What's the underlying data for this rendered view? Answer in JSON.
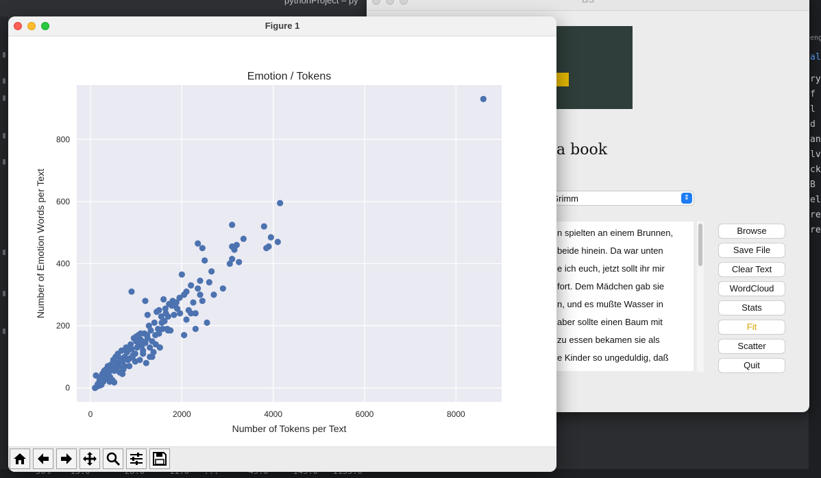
{
  "ide": {
    "title": "pythonProject – py",
    "bottom_row": "50%    13.0       28.0     11.0   ...      49.0     149.0   1155.0",
    "code_fragments": [
      "eng",
      "al",
      "ry",
      "f",
      "l",
      "d",
      "an",
      "lv",
      "ck",
      "B",
      "el",
      "re",
      "re"
    ]
  },
  "bs_window": {
    "title": "BS",
    "heading": "e a book",
    "select_value": "Grimm",
    "text_lines": [
      "n spielten an einem Brunnen,",
      "beide hinein. Da war unten",
      "e ich euch, jetzt sollt ihr mir",
      "fort. Dem Mädchen gab sie",
      "n, und es mußte Wasser in",
      " aber sollte einen Baum mit",
      "zu essen bekamen sie als",
      "e Kinder so ungeduldig, daß"
    ],
    "buttons": [
      {
        "name": "browse-button",
        "label": "Browse"
      },
      {
        "name": "save-file-button",
        "label": "Save File"
      },
      {
        "name": "clear-text-button",
        "label": "Clear Text"
      },
      {
        "name": "wordcloud-button",
        "label": "WordCloud"
      },
      {
        "name": "stats-button",
        "label": "Stats"
      },
      {
        "name": "fit-button",
        "label": "Fit"
      },
      {
        "name": "scatter-button",
        "label": "Scatter"
      },
      {
        "name": "quit-button",
        "label": "Quit"
      }
    ],
    "accent_color": "#d7a400"
  },
  "figure_window": {
    "title": "Figure 1",
    "toolbar": [
      "home-icon",
      "back-arrow-icon",
      "forward-arrow-icon",
      "pan-icon",
      "zoom-icon",
      "subplots-config-icon",
      "save-icon"
    ]
  },
  "chart_data": {
    "type": "scatter",
    "title": "Emotion / Tokens",
    "xlabel": "Number of Tokens per Text",
    "ylabel": "Number of Emotion Words per Text",
    "xlim": [
      -300,
      9000
    ],
    "ylim": [
      -45,
      975
    ],
    "xticks": [
      0,
      2000,
      4000,
      6000,
      8000
    ],
    "yticks": [
      0,
      200,
      400,
      600,
      800
    ],
    "grid": true,
    "background": "#eaeaf2",
    "marker_color": "#4c72b0",
    "points": [
      [
        150,
        5
      ],
      [
        180,
        15
      ],
      [
        200,
        25
      ],
      [
        220,
        35
      ],
      [
        240,
        10
      ],
      [
        260,
        45
      ],
      [
        280,
        20
      ],
      [
        300,
        55
      ],
      [
        320,
        30
      ],
      [
        340,
        60
      ],
      [
        360,
        40
      ],
      [
        380,
        70
      ],
      [
        400,
        50
      ],
      [
        420,
        20
      ],
      [
        450,
        75
      ],
      [
        470,
        60
      ],
      [
        500,
        90
      ],
      [
        520,
        55
      ],
      [
        550,
        100
      ],
      [
        580,
        80
      ],
      [
        600,
        110
      ],
      [
        620,
        70
      ],
      [
        650,
        95
      ],
      [
        680,
        120
      ],
      [
        700,
        85
      ],
      [
        720,
        60
      ],
      [
        750,
        100
      ],
      [
        780,
        130
      ],
      [
        800,
        115
      ],
      [
        820,
        90
      ],
      [
        850,
        70
      ],
      [
        880,
        140
      ],
      [
        900,
        125
      ],
      [
        920,
        100
      ],
      [
        950,
        160
      ],
      [
        980,
        110
      ],
      [
        1000,
        150
      ],
      [
        1020,
        130
      ],
      [
        1050,
        170
      ],
      [
        1080,
        90
      ],
      [
        1100,
        155
      ],
      [
        1120,
        135
      ],
      [
        1150,
        120
      ],
      [
        1180,
        175
      ],
      [
        1200,
        145
      ],
      [
        1220,
        80
      ],
      [
        1250,
        160
      ],
      [
        1280,
        200
      ],
      [
        1300,
        130
      ],
      [
        1320,
        185
      ],
      [
        1350,
        150
      ],
      [
        1380,
        115
      ],
      [
        1400,
        210
      ],
      [
        1420,
        170
      ],
      [
        1450,
        245
      ],
      [
        1480,
        190
      ],
      [
        1500,
        250
      ],
      [
        1520,
        130
      ],
      [
        1550,
        230
      ],
      [
        1580,
        190
      ],
      [
        1600,
        285
      ],
      [
        1620,
        215
      ],
      [
        1650,
        240
      ],
      [
        1680,
        190
      ],
      [
        1700,
        230
      ],
      [
        1750,
        185
      ],
      [
        1800,
        280
      ],
      [
        1850,
        265
      ],
      [
        1900,
        255
      ],
      [
        1950,
        290
      ],
      [
        2000,
        365
      ],
      [
        2050,
        300
      ],
      [
        2100,
        310
      ],
      [
        2150,
        250
      ],
      [
        2200,
        330
      ],
      [
        2250,
        275
      ],
      [
        2300,
        240
      ],
      [
        2350,
        320
      ],
      [
        2400,
        345
      ],
      [
        2450,
        280
      ],
      [
        2500,
        410
      ],
      [
        2550,
        210
      ],
      [
        2600,
        340
      ],
      [
        2650,
        375
      ],
      [
        2700,
        300
      ],
      [
        2050,
        170
      ],
      [
        2200,
        240
      ],
      [
        2300,
        190
      ],
      [
        2400,
        300
      ],
      [
        2450,
        450
      ],
      [
        2350,
        465
      ],
      [
        2100,
        220
      ],
      [
        1200,
        280
      ],
      [
        900,
        310
      ],
      [
        1250,
        235
      ],
      [
        1700,
        185
      ],
      [
        1000,
        165
      ],
      [
        1100,
        175
      ],
      [
        1150,
        110
      ],
      [
        1300,
        100
      ],
      [
        2900,
        320
      ],
      [
        3050,
        400
      ],
      [
        3100,
        415
      ],
      [
        3150,
        445
      ],
      [
        3100,
        455
      ],
      [
        3200,
        460
      ],
      [
        3250,
        405
      ],
      [
        3350,
        480
      ],
      [
        3100,
        525
      ],
      [
        3800,
        520
      ],
      [
        3850,
        450
      ],
      [
        3900,
        455
      ],
      [
        3950,
        485
      ],
      [
        4100,
        470
      ],
      [
        4150,
        595
      ],
      [
        8600,
        930
      ],
      [
        100,
        0
      ],
      [
        120,
        40
      ],
      [
        160,
        12
      ],
      [
        200,
        8
      ],
      [
        230,
        28
      ],
      [
        260,
        22
      ],
      [
        300,
        42
      ],
      [
        350,
        48
      ],
      [
        430,
        35
      ],
      [
        480,
        25
      ],
      [
        520,
        18
      ],
      [
        560,
        65
      ],
      [
        640,
        50
      ],
      [
        700,
        45
      ],
      [
        750,
        70
      ],
      [
        820,
        120
      ],
      [
        860,
        95
      ],
      [
        930,
        105
      ],
      [
        980,
        85
      ],
      [
        1050,
        145
      ],
      [
        1130,
        150
      ],
      [
        1240,
        170
      ],
      [
        1350,
        100
      ],
      [
        1430,
        140
      ],
      [
        1500,
        175
      ],
      [
        1560,
        210
      ],
      [
        1640,
        255
      ],
      [
        1720,
        270
      ],
      [
        1780,
        265
      ],
      [
        1830,
        235
      ],
      [
        1880,
        275
      ],
      [
        1960,
        240
      ]
    ]
  }
}
